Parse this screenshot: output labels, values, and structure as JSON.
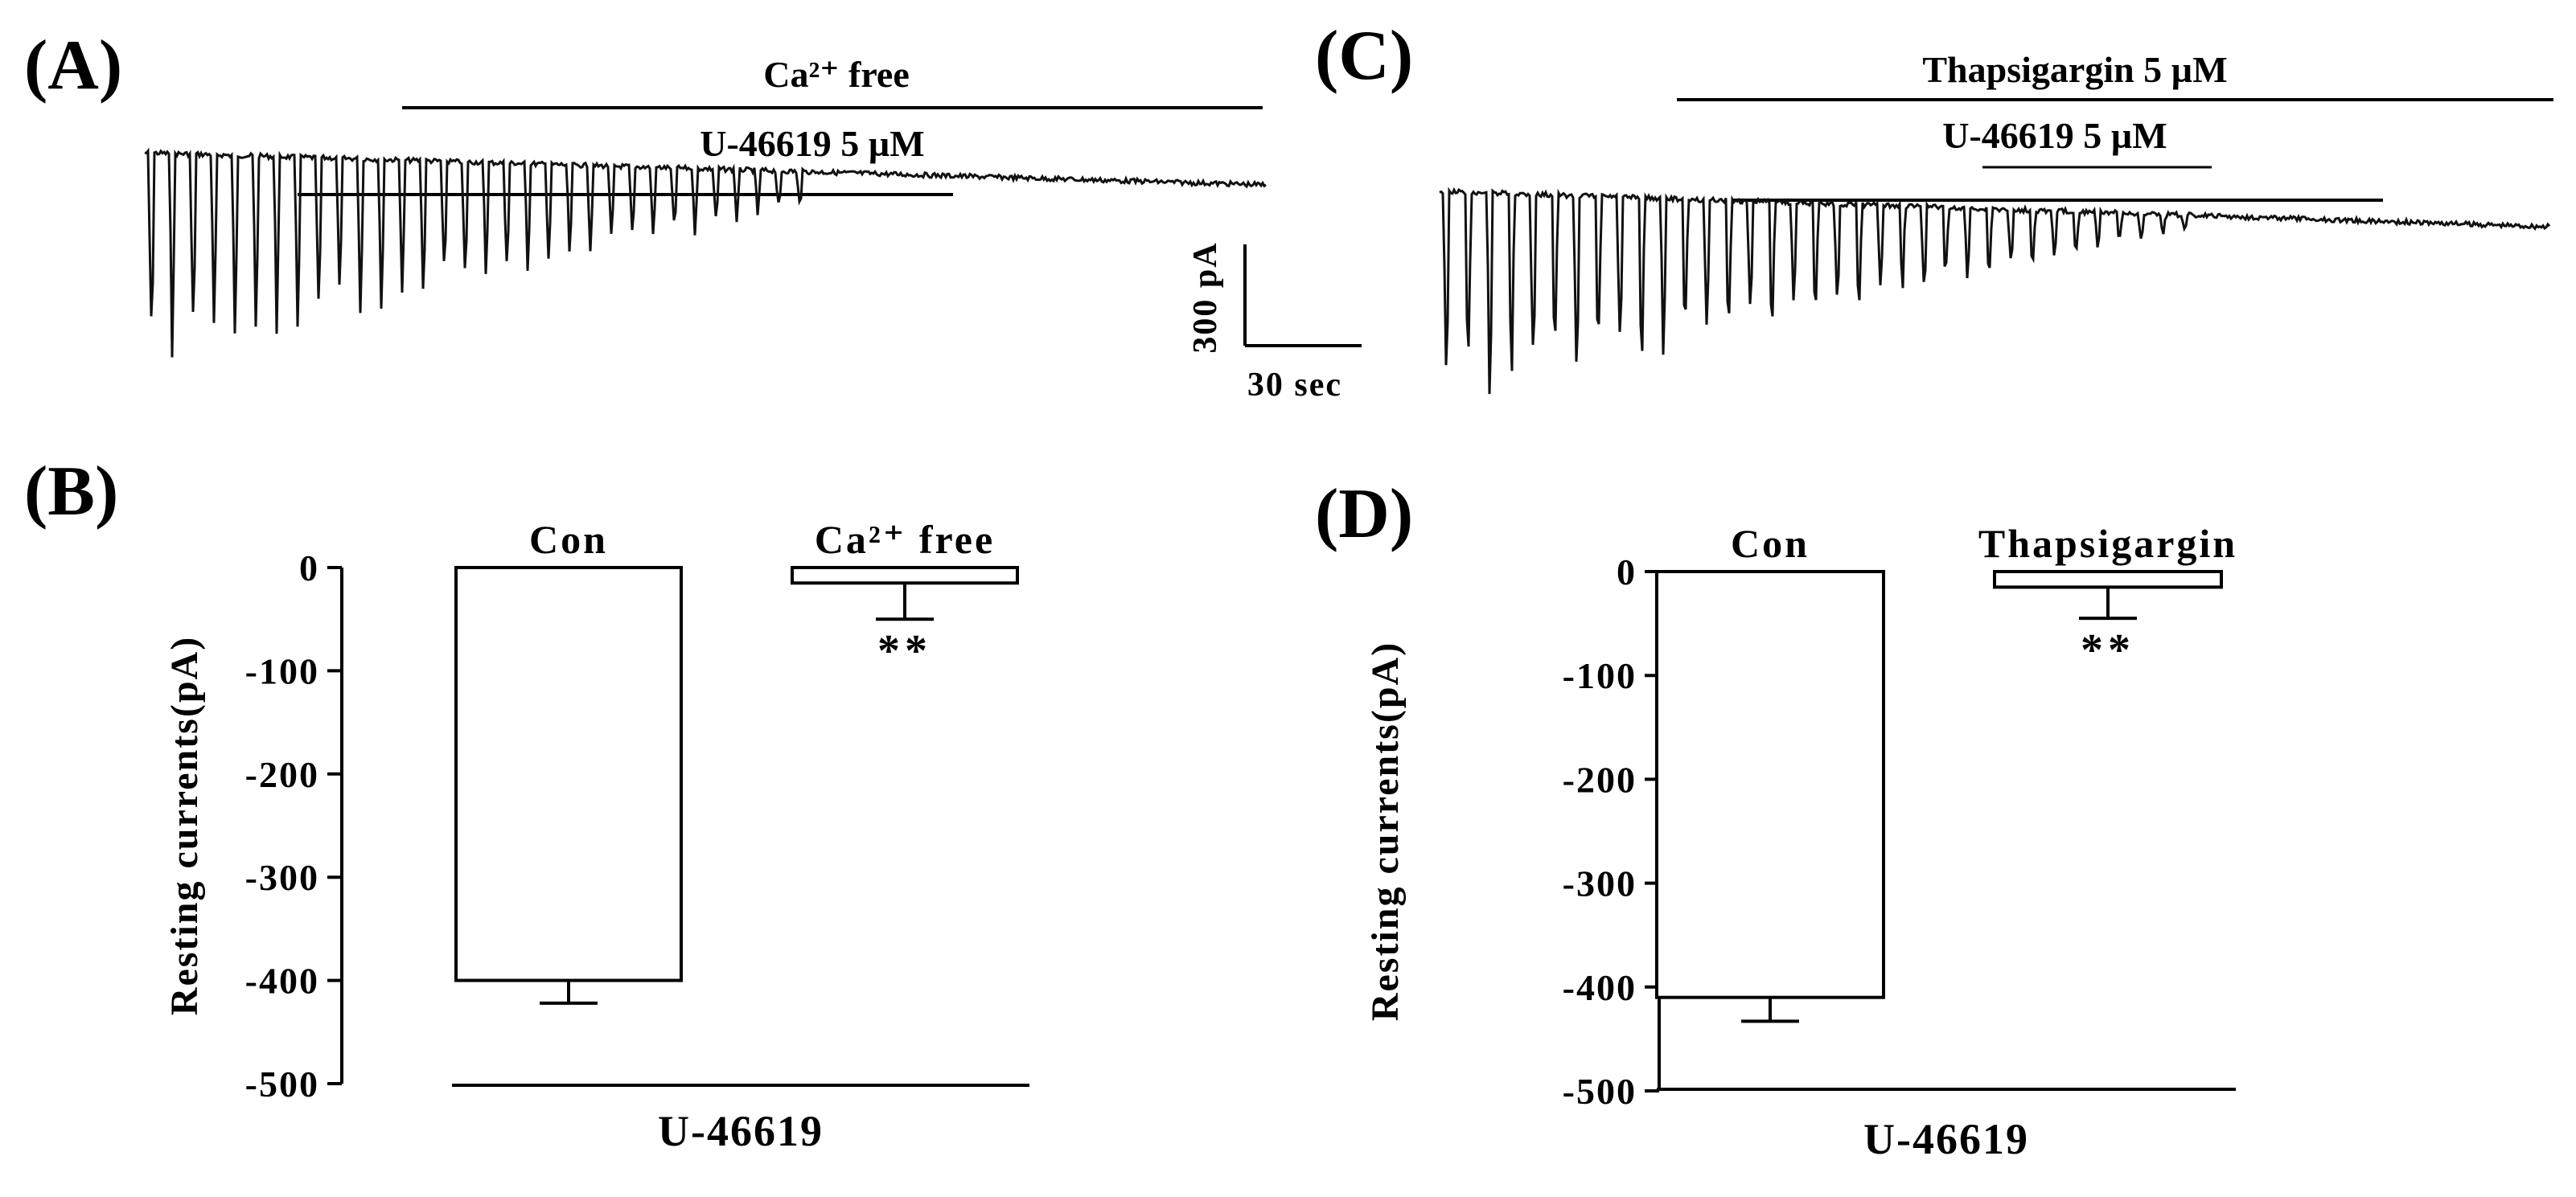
{
  "panels": {
    "A": {
      "label": "(A)",
      "bar1_label": "Ca²⁺ free",
      "bar2_label": "U-46619 5 µM",
      "scale_current": "300 pA",
      "scale_time": "30 sec"
    },
    "B": {
      "label": "(B)"
    },
    "C": {
      "label": "(C)",
      "bar1_label": "Thapsigargin 5 µM",
      "bar2_label": "U-46619 5 µM"
    },
    "D": {
      "label": "(D)"
    }
  },
  "chart_data": [
    {
      "panel": "B",
      "type": "bar",
      "categories": [
        "Con",
        "Ca²⁺ free"
      ],
      "values": [
        -400,
        -15
      ],
      "errors": [
        22,
        35
      ],
      "significance": [
        "",
        "**"
      ],
      "ylabel": "Resting currents(pA)",
      "xlabel": "U-46619",
      "ylim": [
        -500,
        0
      ],
      "yticks": [
        0,
        -100,
        -200,
        -300,
        -400,
        -500
      ],
      "grid": false,
      "bar_color": "#ffffff"
    },
    {
      "panel": "D",
      "type": "bar",
      "categories": [
        "Con",
        "Thapsigargin"
      ],
      "values": [
        -410,
        -15
      ],
      "errors": [
        23,
        30
      ],
      "significance": [
        "",
        "**"
      ],
      "ylabel": "Resting currents(pA)",
      "xlabel": "U-46619",
      "ylim": [
        -500,
        0
      ],
      "yticks": [
        0,
        -100,
        -200,
        -300,
        -400,
        -500
      ],
      "grid": false,
      "bar_color": "#ffffff"
    }
  ]
}
